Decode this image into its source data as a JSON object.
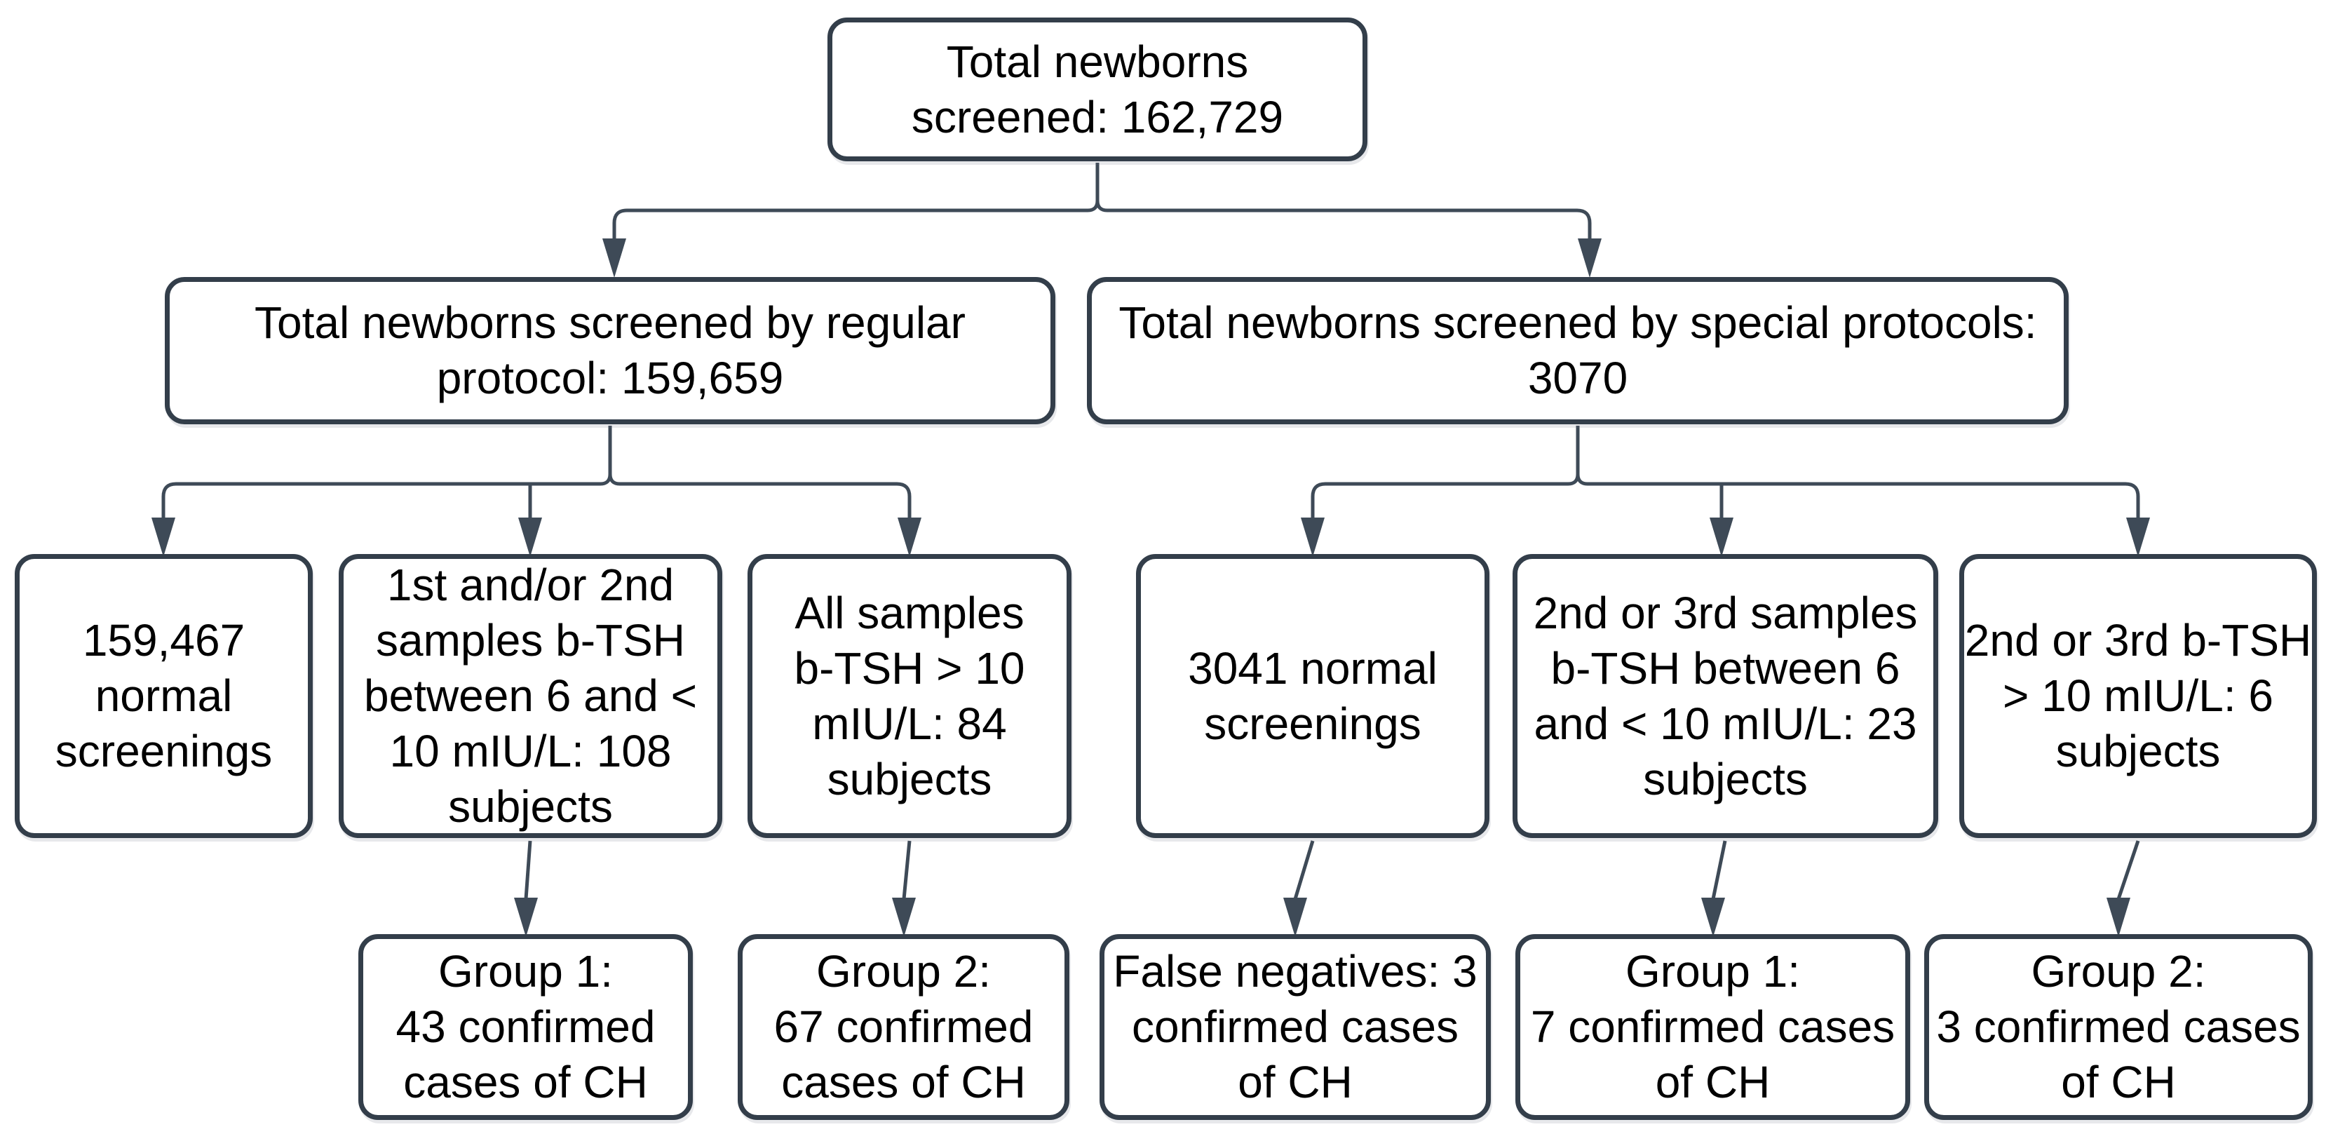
{
  "colors": {
    "box_border": "#333e4a",
    "connector": "#3e4a57",
    "arrow": "#3e4a57",
    "text": "#000000",
    "box_fill": "#ffffff",
    "page_background": "#ffffff"
  },
  "flowchart": {
    "root": {
      "id": "total-screened",
      "lines": [
        "Total newborns",
        "screened: 162,729"
      ]
    },
    "level2": [
      {
        "id": "regular-protocol",
        "lines": [
          "Total newborns screened by regular",
          "protocol: 159,659"
        ]
      },
      {
        "id": "special-protocols",
        "lines": [
          "Total newborns screened by special protocols:",
          "3070"
        ]
      }
    ],
    "level3": [
      {
        "id": "regular-normal-screenings",
        "lines": [
          "159,467",
          "normal",
          "screenings"
        ]
      },
      {
        "id": "regular-borderline-tsh",
        "lines": [
          "1st and/or 2nd",
          "samples b-TSH",
          "between 6 and <",
          "10 mIU/L: 108",
          "subjects"
        ]
      },
      {
        "id": "regular-high-tsh",
        "lines": [
          "All samples",
          "b-TSH > 10",
          "mIU/L: 84",
          "subjects"
        ]
      },
      {
        "id": "special-normal-screenings",
        "lines": [
          "3041 normal",
          "screenings"
        ]
      },
      {
        "id": "special-borderline-tsh",
        "lines": [
          "2nd or 3rd samples",
          "b-TSH between 6",
          "and < 10 mIU/L: 23",
          "subjects"
        ]
      },
      {
        "id": "special-high-tsh",
        "lines": [
          "2nd or 3rd b-TSH",
          "> 10 mIU/L: 6",
          "subjects"
        ]
      }
    ],
    "level4": [
      {
        "id": "regular-group1",
        "lines": [
          "Group 1:",
          "43 confirmed",
          "cases of CH"
        ]
      },
      {
        "id": "regular-group2",
        "lines": [
          "Group 2:",
          "67 confirmed",
          "cases of CH"
        ]
      },
      {
        "id": "false-negatives",
        "lines": [
          "False negatives: 3",
          "confirmed cases",
          "of CH"
        ]
      },
      {
        "id": "special-group1",
        "lines": [
          "Group 1:",
          "7 confirmed cases",
          "of CH"
        ]
      },
      {
        "id": "special-group2",
        "lines": [
          "Group 2:",
          "3 confirmed cases",
          "of CH"
        ]
      }
    ]
  }
}
